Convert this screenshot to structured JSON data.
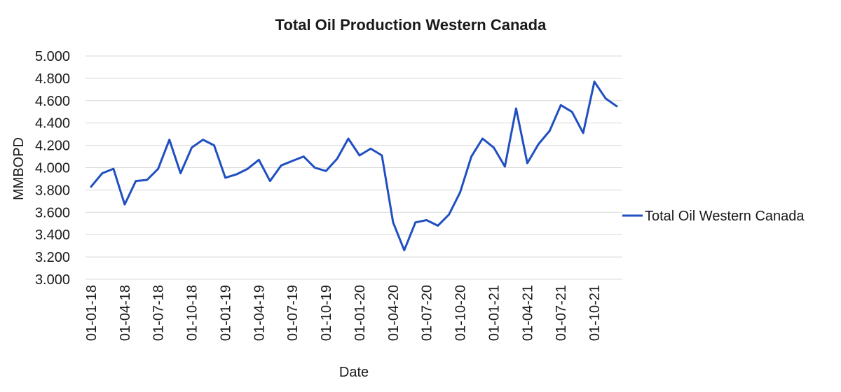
{
  "chart_data": {
    "type": "line",
    "title": "Total Oil Production Western Canada",
    "xlabel": "Date",
    "ylabel": "MMBOPD",
    "ylim": [
      3.0,
      5.0
    ],
    "yticks": [
      3.0,
      3.2,
      3.4,
      3.6,
      3.8,
      4.0,
      4.2,
      4.4,
      4.6,
      4.8,
      5.0
    ],
    "ytick_labels": [
      "3.000",
      "3.200",
      "3.400",
      "3.600",
      "3.800",
      "4.000",
      "4.200",
      "4.400",
      "4.600",
      "4.800",
      "5.000"
    ],
    "xtick_labels": [
      "01-01-18",
      "01-04-18",
      "01-07-18",
      "01-10-18",
      "01-01-19",
      "01-04-19",
      "01-07-19",
      "01-10-19",
      "01-01-20",
      "01-04-20",
      "01-07-20",
      "01-10-20",
      "01-01-21",
      "01-04-21",
      "01-07-21",
      "01-10-21"
    ],
    "x": [
      "2018-01",
      "2018-02",
      "2018-03",
      "2018-04",
      "2018-05",
      "2018-06",
      "2018-07",
      "2018-08",
      "2018-09",
      "2018-10",
      "2018-11",
      "2018-12",
      "2019-01",
      "2019-02",
      "2019-03",
      "2019-04",
      "2019-05",
      "2019-06",
      "2019-07",
      "2019-08",
      "2019-09",
      "2019-10",
      "2019-11",
      "2019-12",
      "2020-01",
      "2020-02",
      "2020-03",
      "2020-04",
      "2020-05",
      "2020-06",
      "2020-07",
      "2020-08",
      "2020-09",
      "2020-10",
      "2020-11",
      "2020-12",
      "2021-01",
      "2021-02",
      "2021-03",
      "2021-04",
      "2021-05",
      "2021-06",
      "2021-07",
      "2021-08",
      "2021-09",
      "2021-10",
      "2021-11",
      "2021-12"
    ],
    "series": [
      {
        "name": "Total Oil Western Canada",
        "color": "#1f4fc0",
        "values": [
          3.83,
          3.95,
          3.99,
          3.67,
          3.88,
          3.89,
          3.99,
          4.25,
          3.95,
          4.18,
          4.25,
          4.2,
          3.91,
          3.94,
          3.99,
          4.07,
          3.88,
          4.02,
          4.06,
          4.1,
          4.0,
          3.97,
          4.08,
          4.26,
          4.11,
          4.17,
          4.11,
          3.51,
          3.26,
          3.51,
          3.53,
          3.48,
          3.58,
          3.78,
          4.1,
          4.26,
          4.18,
          4.01,
          4.53,
          4.04,
          4.21,
          4.33,
          4.56,
          4.5,
          4.31,
          4.77,
          4.62,
          4.55
        ]
      }
    ],
    "grid": true,
    "legend_position": "right"
  }
}
